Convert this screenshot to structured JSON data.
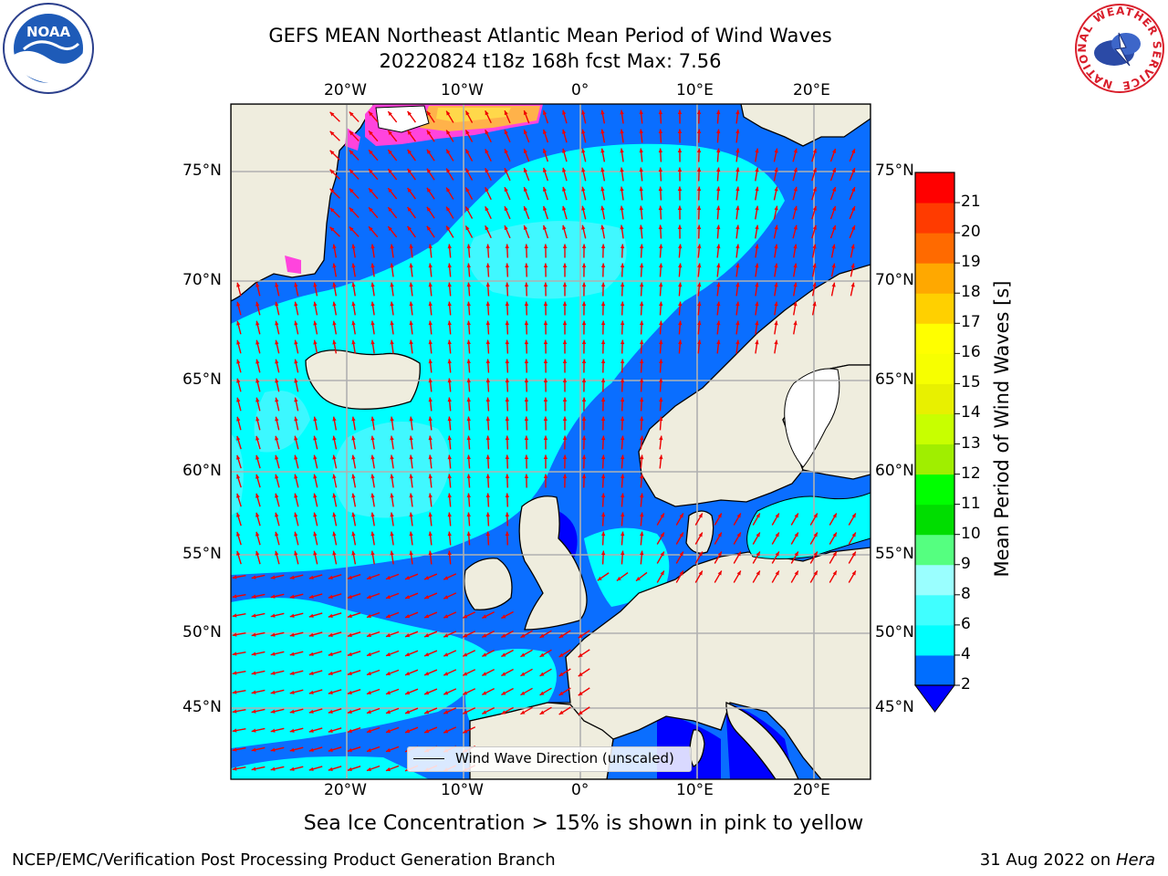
{
  "header": {
    "title_line1": "GEFS MEAN Northeast Atlantic Mean Period of Wind Waves",
    "title_line2": "20220824 t18z 168h fcst   Max: 7.56"
  },
  "logos": {
    "left": "noaa-logo",
    "right": "nws-logo",
    "noaa_text": "NOAA",
    "nws_ring_text": "NATIONAL WEATHER SERVICE"
  },
  "map": {
    "lon_ticks": [
      "20°W",
      "10°W",
      "0°",
      "10°E",
      "20°E"
    ],
    "lat_ticks": [
      "75°N",
      "70°N",
      "65°N",
      "60°N",
      "55°N",
      "50°N",
      "45°N"
    ],
    "lon_range": [
      -30,
      25
    ],
    "lat_range": [
      41,
      78
    ],
    "projection": "polar-stereographic",
    "grid": true,
    "colors": {
      "ocean_low": "#0066ff",
      "ocean_mid": "#00ffff",
      "ocean_high": "#55f5ff",
      "land": "#efedde",
      "sea_ice": "#ff44dd",
      "arrows": "#ee0000"
    }
  },
  "legend": {
    "label": "Wind Wave Direction (unscaled)",
    "placement": "lower-center"
  },
  "colorbar": {
    "title": "Mean Period of Wind Waves [s]",
    "tick_labels": [
      "2",
      "4",
      "6",
      "8",
      "9",
      "10",
      "11",
      "12",
      "13",
      "14",
      "15",
      "16",
      "17",
      "18",
      "19",
      "20",
      "21"
    ],
    "band_colors": [
      "#006eff",
      "#00ffff",
      "#40ffff",
      "#9affff",
      "#55ff80",
      "#00dd00",
      "#00ff00",
      "#a0ee00",
      "#c8ff00",
      "#e8f000",
      "#f7ff00",
      "#ffff00",
      "#ffd000",
      "#ffa800",
      "#ff6a00",
      "#ff3b00",
      "#ff0000"
    ],
    "under_color": "#0000ff"
  },
  "note": "Sea Ice Concentration > 15% is shown in pink to yellow",
  "footer": {
    "left": "NCEP/EMC/Verification Post Processing Product Generation Branch",
    "right_date": "31 Aug 2022 on ",
    "right_host": "Hera"
  }
}
